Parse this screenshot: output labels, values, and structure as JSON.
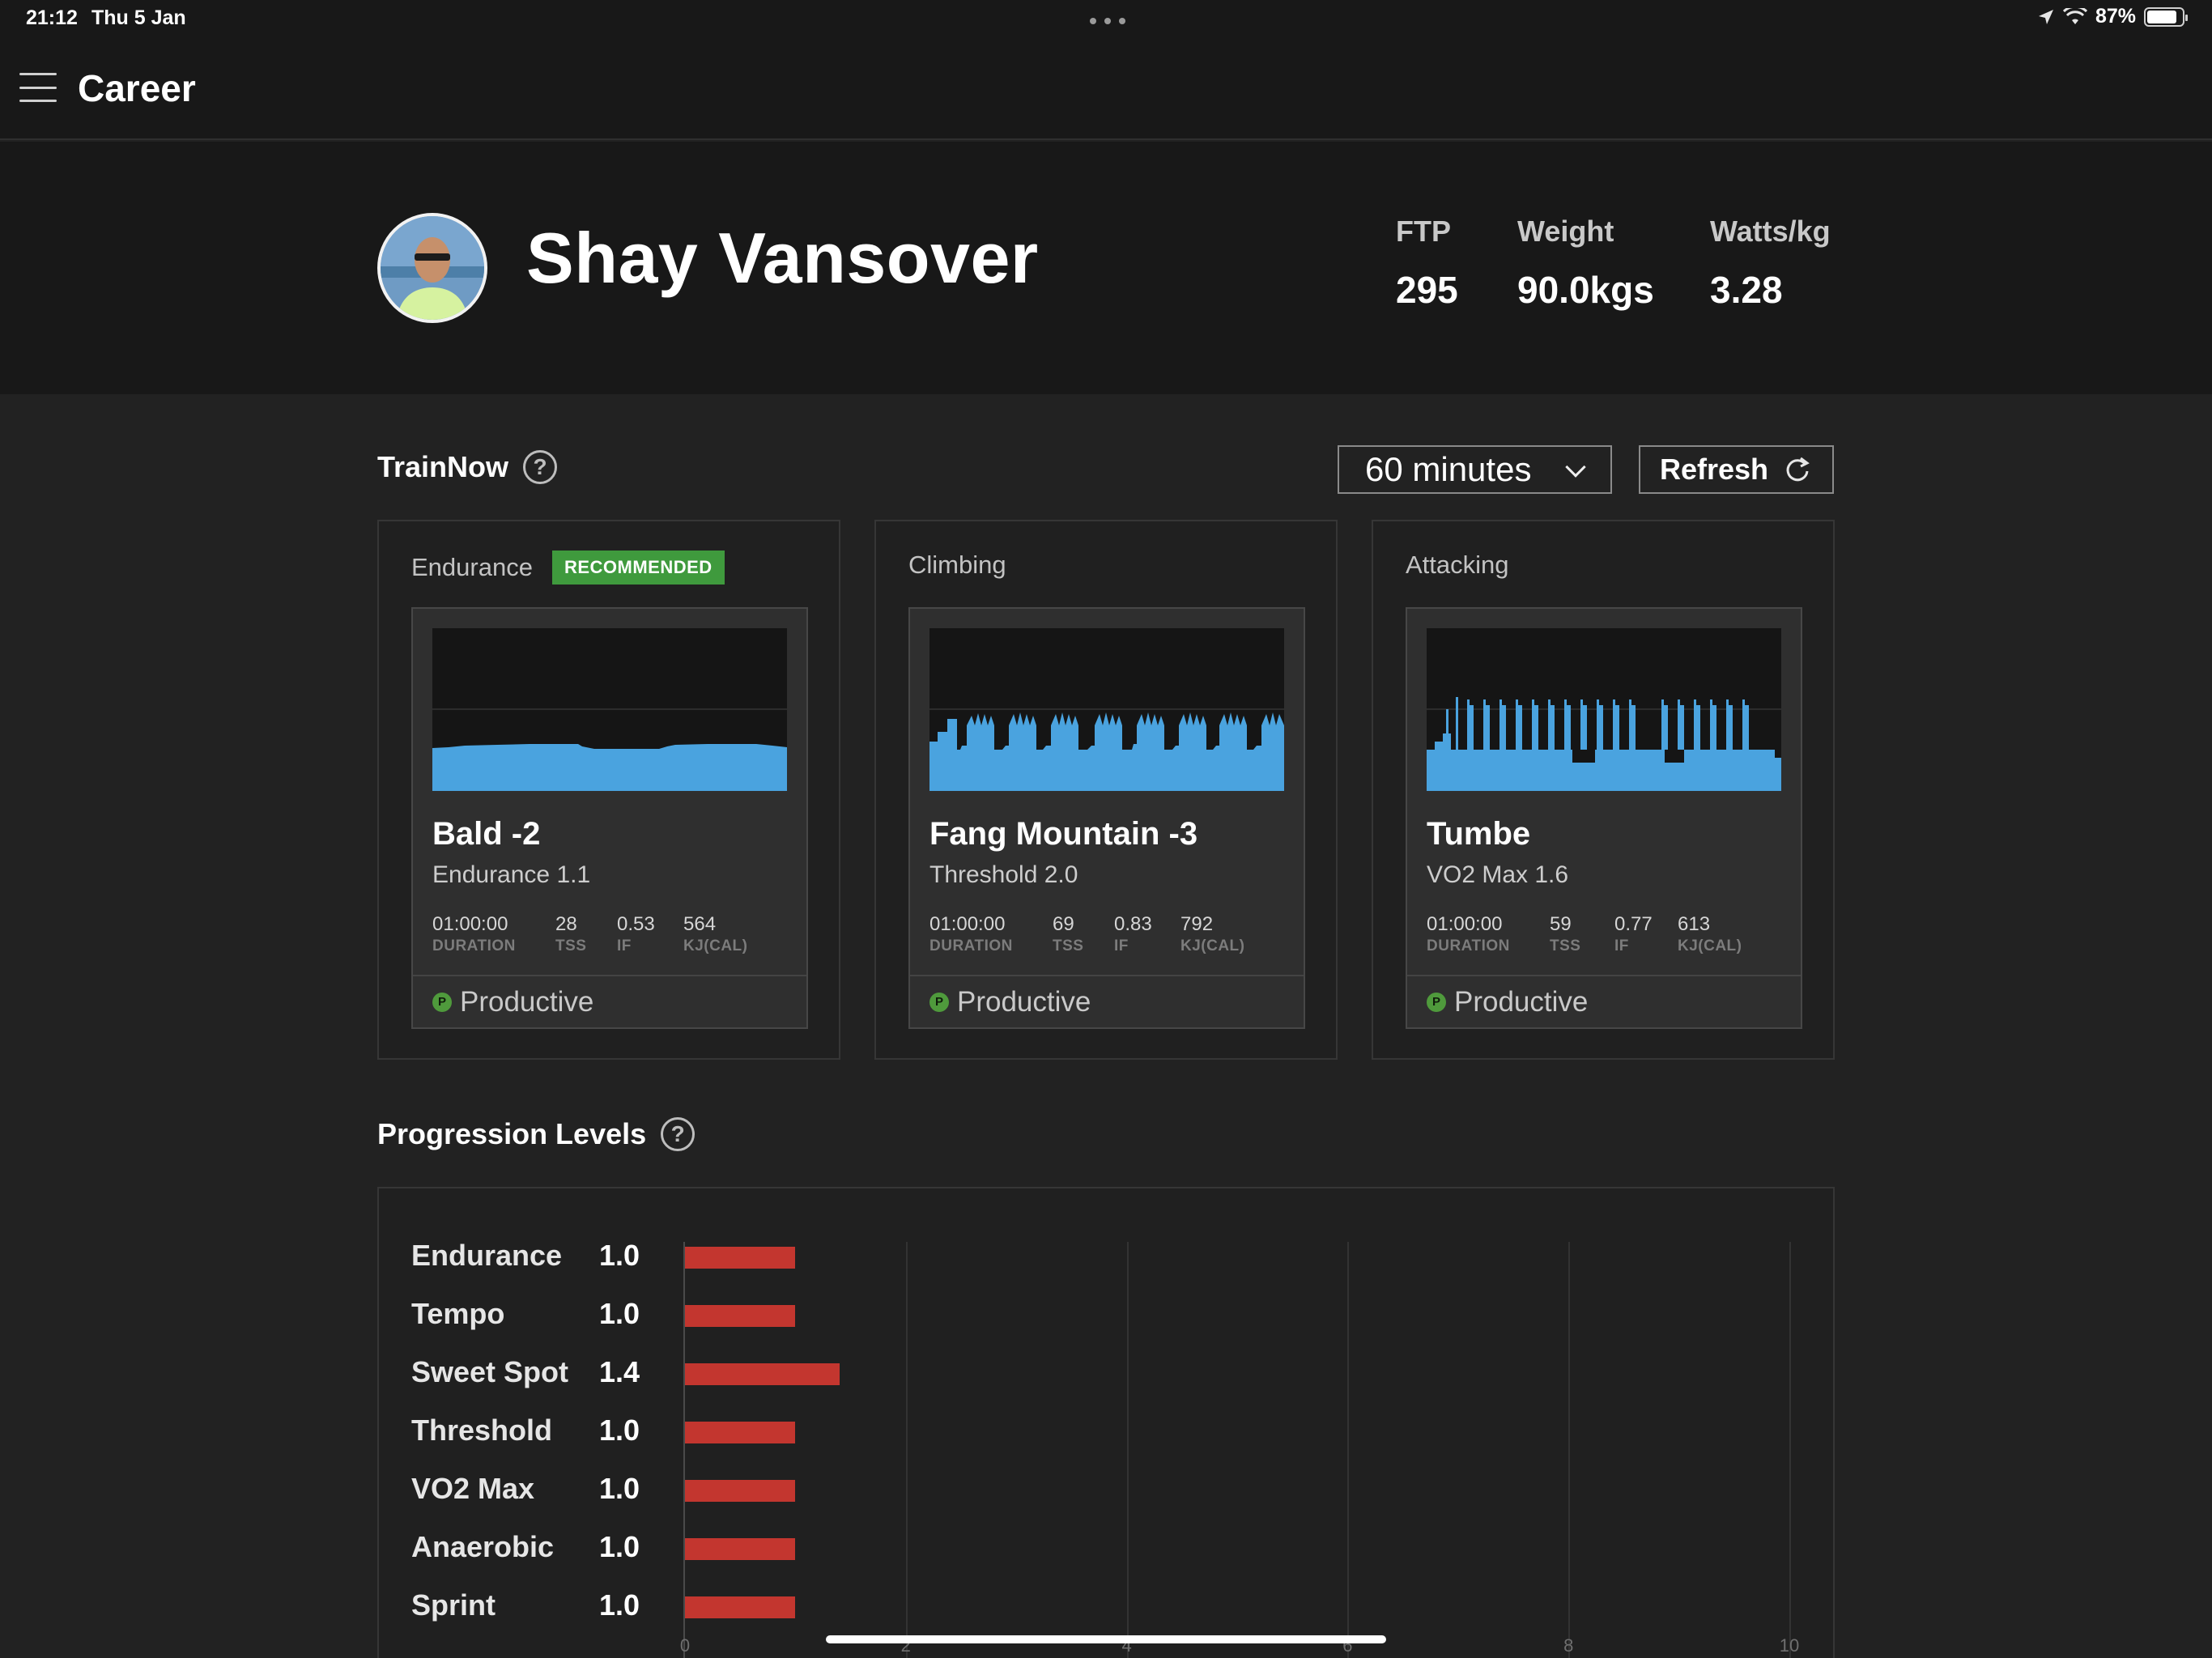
{
  "status_bar": {
    "time": "21:12",
    "date": "Thu 5 Jan",
    "battery": "87%"
  },
  "nav": {
    "title": "Career"
  },
  "profile": {
    "name": "Shay Vansover",
    "stats": [
      {
        "label": "FTP",
        "value": "295"
      },
      {
        "label": "Weight",
        "value": "90.0kgs"
      },
      {
        "label": "Watts/kg",
        "value": "3.28"
      }
    ]
  },
  "trainnow": {
    "title": "TrainNow",
    "duration_select": "60 minutes",
    "refresh_label": "Refresh",
    "cards": [
      {
        "category": "Endurance",
        "badge": "RECOMMENDED",
        "workout": "Bald -2",
        "level": "Endurance 1.1",
        "metrics": [
          {
            "value": "01:00:00",
            "label": "DURATION"
          },
          {
            "value": "28",
            "label": "TSS"
          },
          {
            "value": "0.53",
            "label": "IF"
          },
          {
            "value": "564",
            "label": "KJ(CAL)"
          }
        ],
        "status": "Productive",
        "status_icon": "P"
      },
      {
        "category": "Climbing",
        "badge": "",
        "workout": "Fang Mountain -3",
        "level": "Threshold 2.0",
        "metrics": [
          {
            "value": "01:00:00",
            "label": "DURATION"
          },
          {
            "value": "69",
            "label": "TSS"
          },
          {
            "value": "0.83",
            "label": "IF"
          },
          {
            "value": "792",
            "label": "KJ(CAL)"
          }
        ],
        "status": "Productive",
        "status_icon": "P"
      },
      {
        "category": "Attacking",
        "badge": "",
        "workout": "Tumbe",
        "level": "VO2 Max 1.6",
        "metrics": [
          {
            "value": "01:00:00",
            "label": "DURATION"
          },
          {
            "value": "59",
            "label": "TSS"
          },
          {
            "value": "0.77",
            "label": "IF"
          },
          {
            "value": "613",
            "label": "KJ(CAL)"
          }
        ],
        "status": "Productive",
        "status_icon": "P"
      }
    ]
  },
  "progression": {
    "title": "Progression Levels",
    "levels": [
      {
        "label": "Endurance",
        "value": "1.0"
      },
      {
        "label": "Tempo",
        "value": "1.0"
      },
      {
        "label": "Sweet Spot",
        "value": "1.4"
      },
      {
        "label": "Threshold",
        "value": "1.0"
      },
      {
        "label": "VO2 Max",
        "value": "1.0"
      },
      {
        "label": "Anaerobic",
        "value": "1.0"
      },
      {
        "label": "Sprint",
        "value": "1.0"
      }
    ],
    "axis_ticks": [
      "0",
      "2",
      "4",
      "6",
      "8",
      "10"
    ],
    "axis_max": 10
  },
  "colors": {
    "accent_blue": "#4aa3df",
    "recommended_green": "#3f9a3d",
    "bar_red": "#c3362f",
    "productive_green": "#4f9a3c"
  }
}
